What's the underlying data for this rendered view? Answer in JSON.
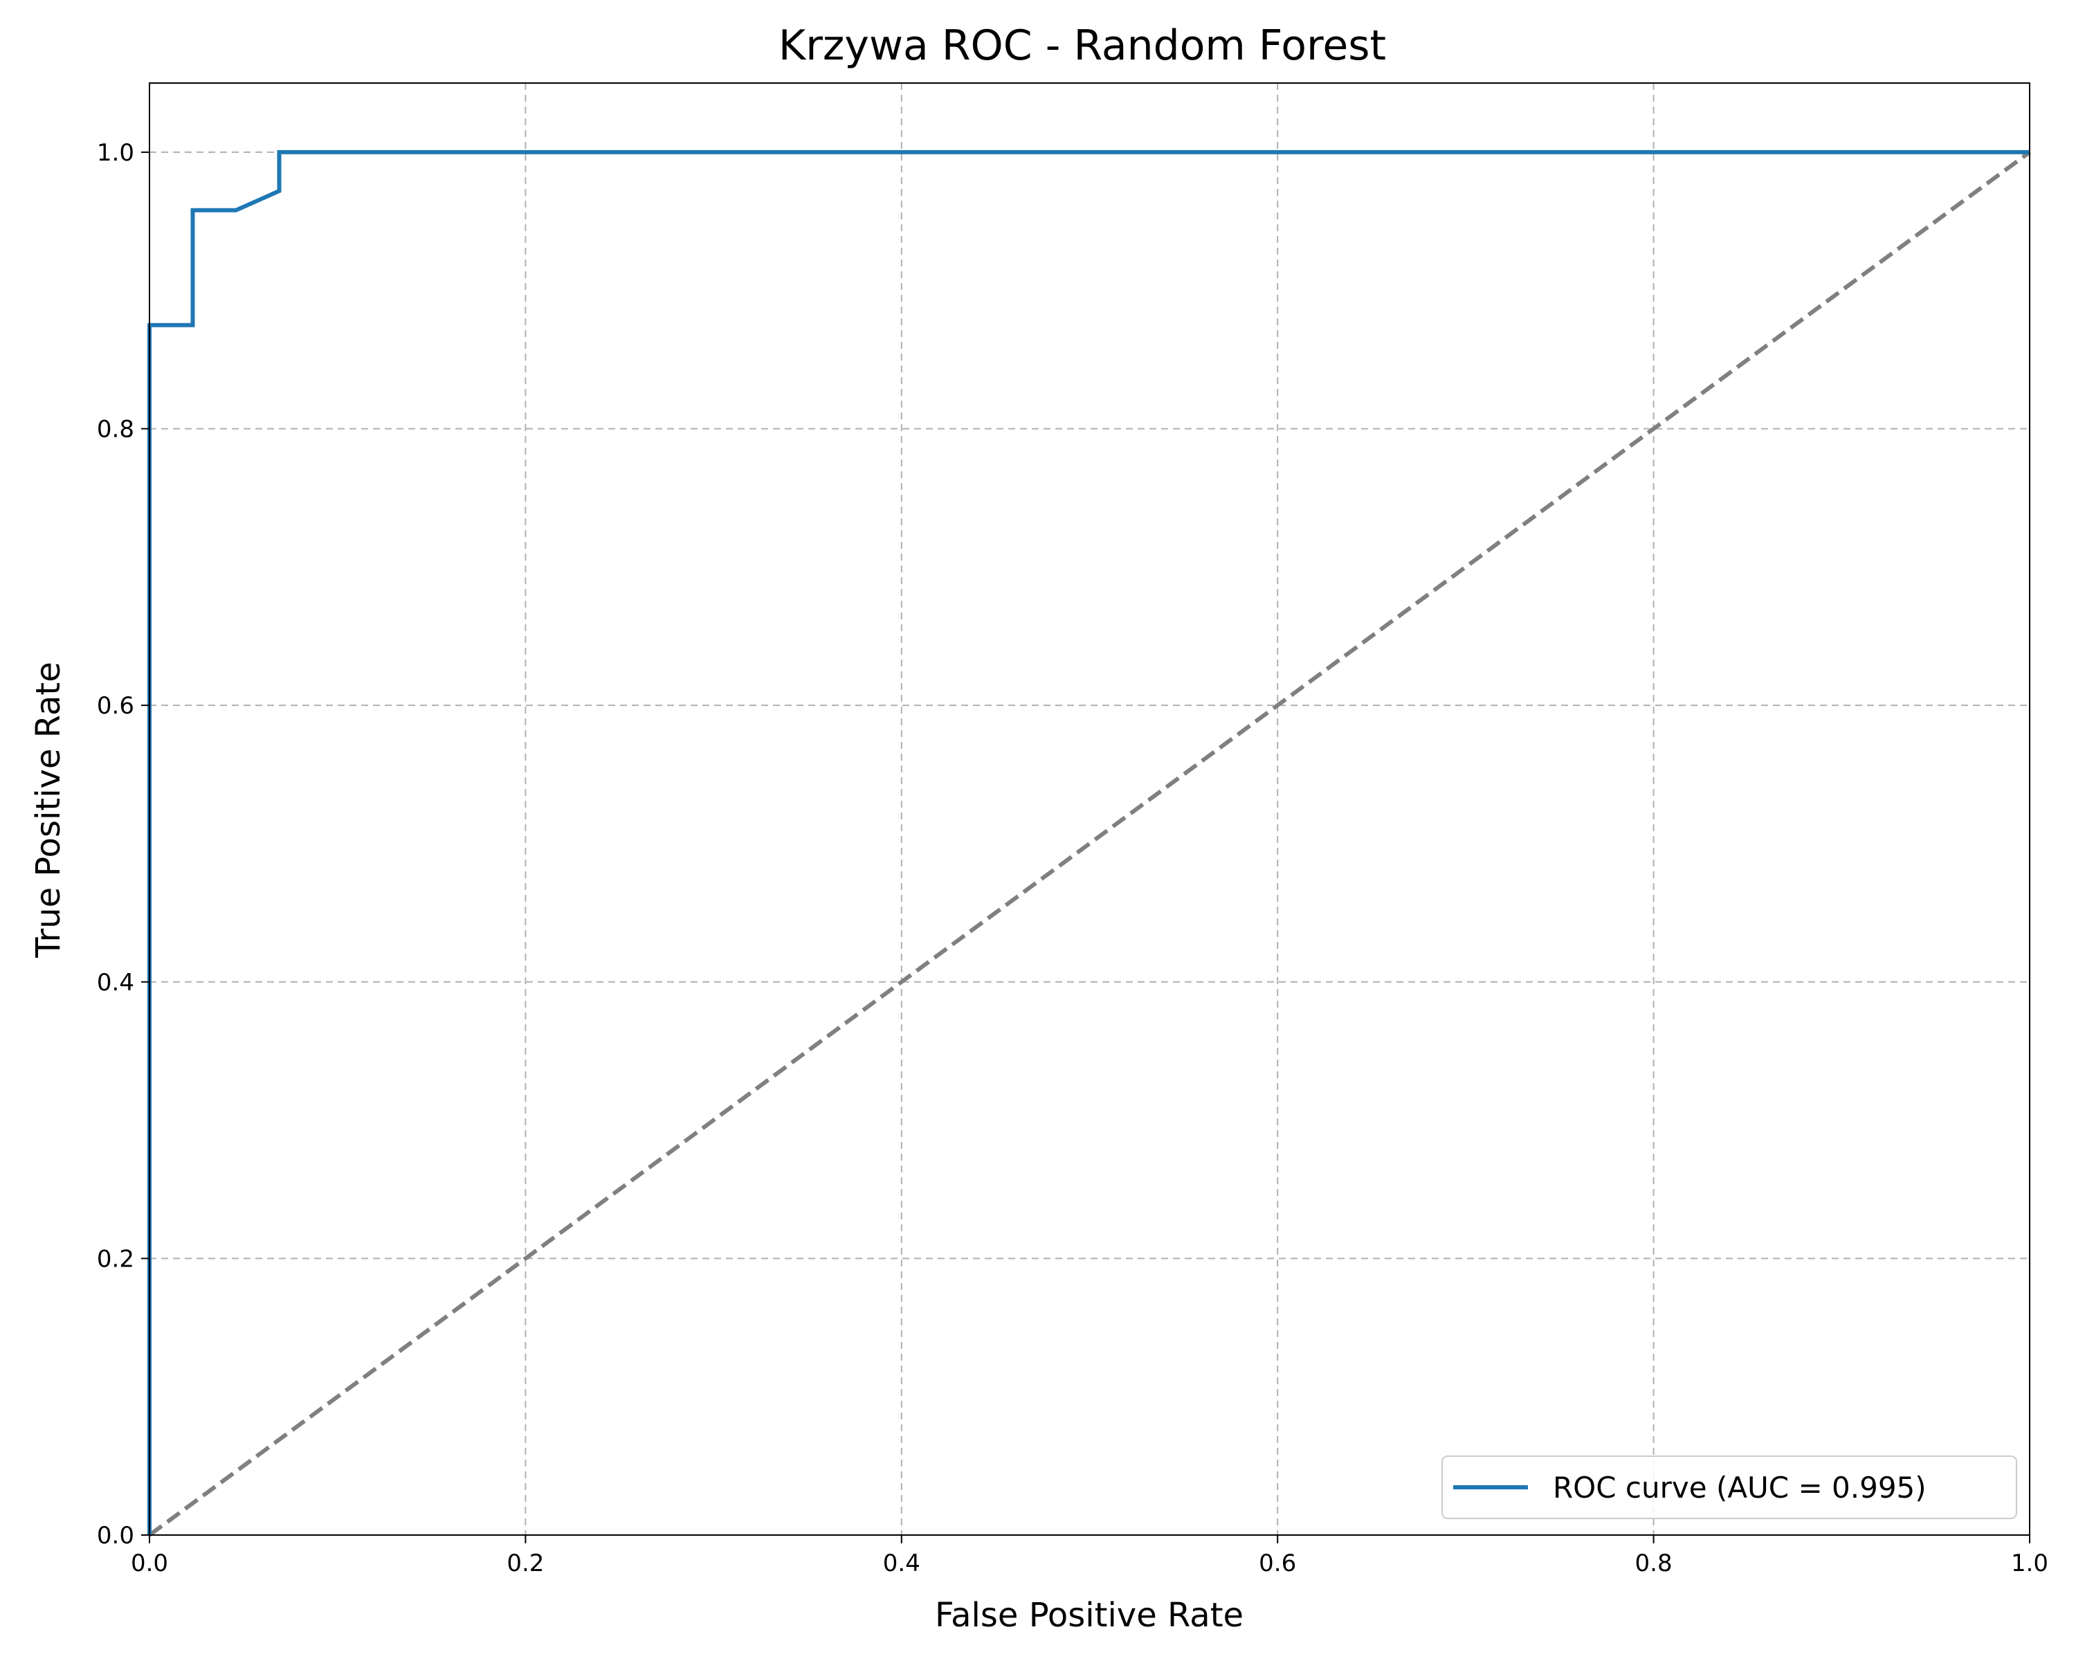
{
  "chart_data": {
    "type": "line",
    "title": "Krzywa ROC - Random Forest",
    "xlabel": "False Positive Rate",
    "ylabel": "True Positive Rate",
    "xlim": [
      0.0,
      1.0
    ],
    "ylim": [
      0.0,
      1.05
    ],
    "x_ticks": [
      "0.0",
      "0.2",
      "0.4",
      "0.6",
      "0.8",
      "1.0"
    ],
    "y_ticks": [
      "0.0",
      "0.2",
      "0.4",
      "0.6",
      "0.8",
      "1.0"
    ],
    "grid": true,
    "legend_position": "lower-right",
    "series": [
      {
        "name": "ROC curve (AUC = 0.995)",
        "color": "#1f77b4",
        "style": "solid",
        "x": [
          0.0,
          0.0,
          0.023,
          0.023,
          0.046,
          0.069,
          0.069,
          1.0
        ],
        "y": [
          0.0,
          0.875,
          0.875,
          0.958,
          0.958,
          0.972,
          1.0,
          1.0
        ]
      },
      {
        "color": "#808080",
        "style": "dashed",
        "x": [
          0.0,
          1.0
        ],
        "y": [
          0.0,
          1.0
        ]
      }
    ]
  }
}
